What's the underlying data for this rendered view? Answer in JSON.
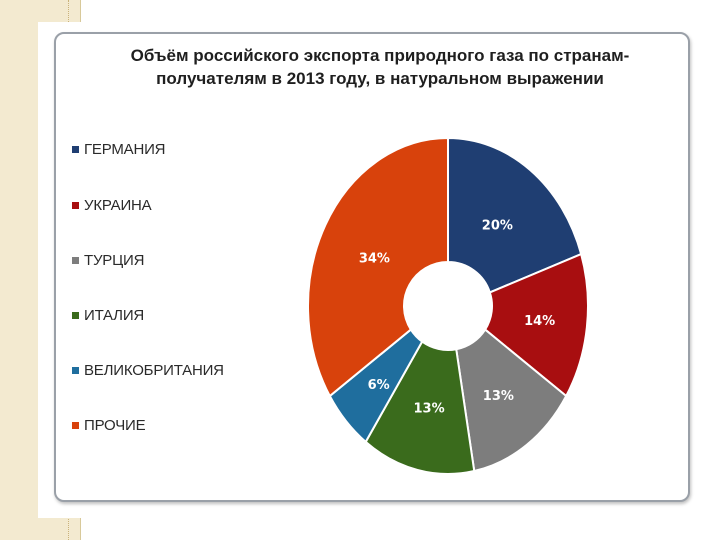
{
  "chart_data": {
    "type": "pie",
    "title": "Объём российского экспорта природного газа по странам-получателям в 2013 году, в натуральном выражении",
    "title_lines": [
      "Объём российского экспорта природного газа по странам-",
      "получателям в 2013 году, в натуральном выражении"
    ],
    "donut": true,
    "legend_placement": "left",
    "categories": [
      "ГЕРМАНИЯ",
      "УКРАИНА",
      "ТУРЦИЯ",
      "ИТАЛИЯ",
      "ВЕЛИКОБРИТАНИЯ",
      "ПРОЧИЕ"
    ],
    "values": [
      20,
      14,
      13,
      13,
      6,
      34
    ],
    "labels": [
      "20%",
      "14%",
      "13%",
      "13%",
      "6%",
      "34%"
    ],
    "colors": [
      "#1f3e72",
      "#a80e10",
      "#7d7d7d",
      "#3a6b1c",
      "#1f6e9e",
      "#d8420c"
    ],
    "label_colors": [
      "#ffffff",
      "#ffffff",
      "#ffffff",
      "#ffffff",
      "#ffffff",
      "#ffffff"
    ]
  }
}
